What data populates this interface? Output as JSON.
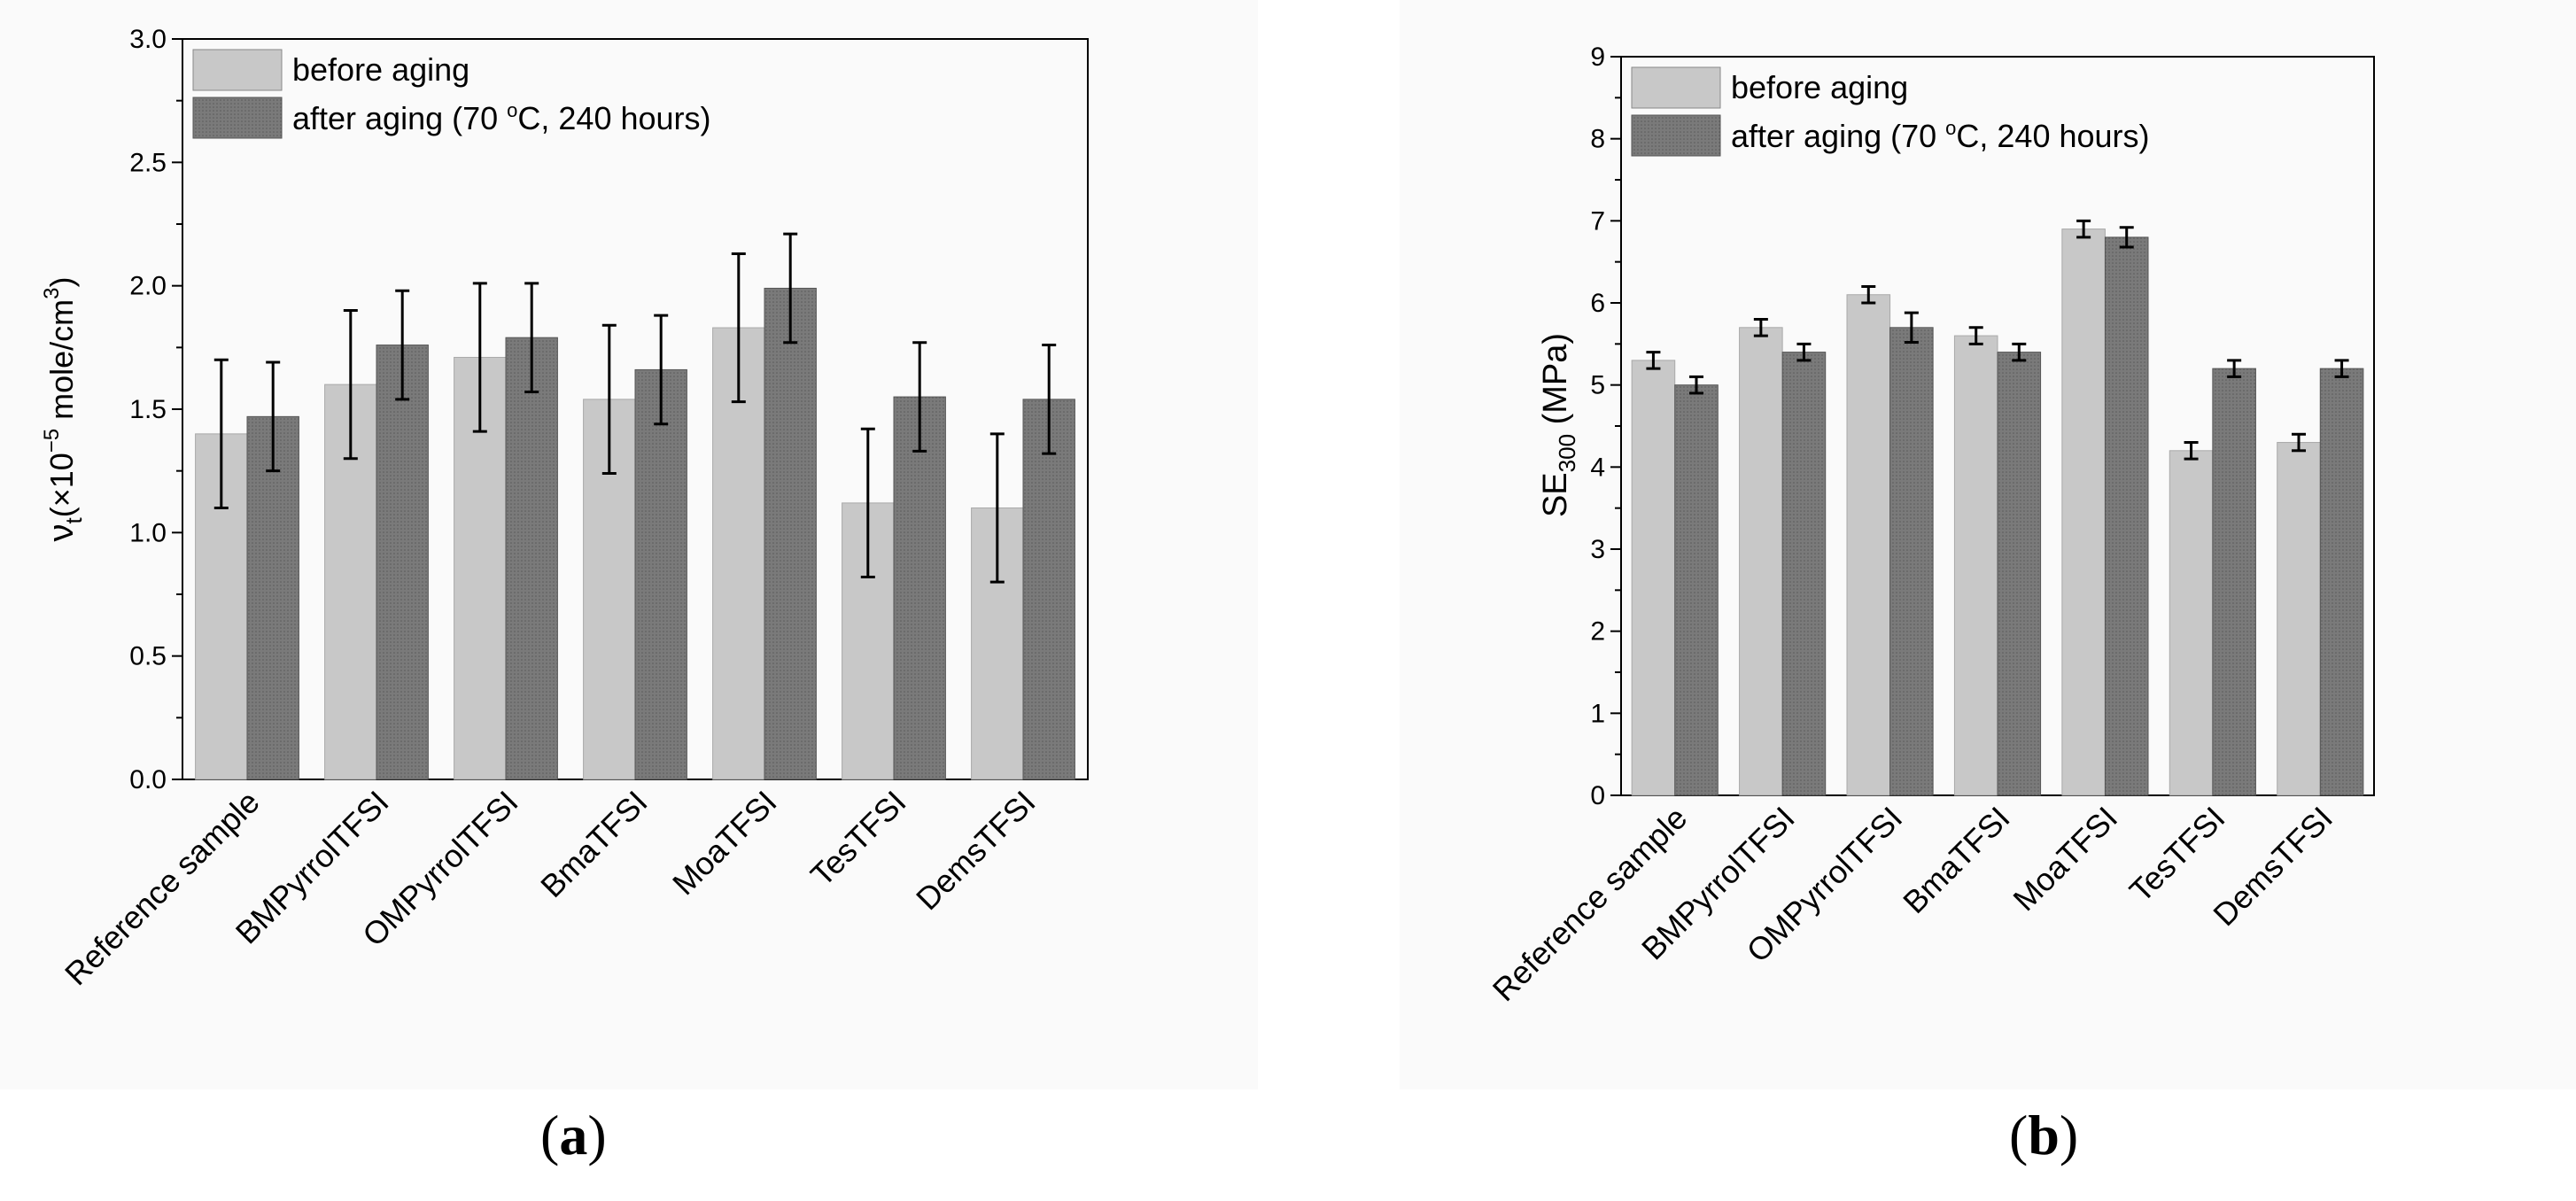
{
  "chart_data": [
    {
      "type": "bar",
      "panel_label": "a",
      "categories": [
        "Reference sample",
        "BMPyrrolTFSI",
        "OMPyrrolTFSI",
        "BmaTFSI",
        "MoaTFSI",
        "TesTFSI",
        "DemsTFSI"
      ],
      "series": [
        {
          "name": "before aging",
          "values": [
            1.4,
            1.6,
            1.71,
            1.54,
            1.83,
            1.12,
            1.1
          ],
          "errors": [
            0.3,
            0.3,
            0.3,
            0.3,
            0.3,
            0.3,
            0.3
          ],
          "color": "#c8c8c8"
        },
        {
          "name": "after aging (70 °C, 240 hours)",
          "values": [
            1.47,
            1.76,
            1.79,
            1.66,
            1.99,
            1.55,
            1.54
          ],
          "errors": [
            0.22,
            0.22,
            0.22,
            0.22,
            0.22,
            0.22,
            0.22
          ],
          "color": "#7a7a7a"
        }
      ],
      "legend_parts": {
        "before": "before aging",
        "after_prefix": "after aging (70 ",
        "after_sup": "o",
        "after_suffix": "C, 240 hours)"
      },
      "ylabel_parts": {
        "nu": "ν",
        "sub_t": "t",
        "open": "(×10",
        "sup_exp": "−5",
        "mid": " mole/cm",
        "sup_3": "3",
        "close": ")"
      },
      "ylim": [
        0,
        3.0
      ],
      "yticks": [
        "0.0",
        "0.5",
        "1.0",
        "1.5",
        "2.0",
        "2.5",
        "3.0"
      ],
      "legend_position": "top-left"
    },
    {
      "type": "bar",
      "panel_label": "b",
      "categories": [
        "Reference sample",
        "BMPyrrolTFSI",
        "OMPyrrolTFSI",
        "BmaTFSI",
        "MoaTFSI",
        "TesTFSI",
        "DemsTFSI"
      ],
      "series": [
        {
          "name": "before aging",
          "values": [
            5.3,
            5.7,
            6.1,
            5.6,
            6.9,
            4.2,
            4.3
          ],
          "errors": [
            0.1,
            0.1,
            0.1,
            0.1,
            0.1,
            0.1,
            0.1
          ],
          "color": "#c8c8c8"
        },
        {
          "name": "after aging (70 °C, 240 hours)",
          "values": [
            5.0,
            5.4,
            5.7,
            5.4,
            6.8,
            5.2,
            5.2
          ],
          "errors": [
            0.1,
            0.1,
            0.18,
            0.1,
            0.12,
            0.1,
            0.1
          ],
          "color": "#7a7a7a"
        }
      ],
      "legend_parts": {
        "before": "before aging",
        "after_prefix": "after aging (70 ",
        "after_sup": "o",
        "after_suffix": "C, 240 hours)"
      },
      "ylabel_parts": {
        "main": "SE",
        "sub": "300",
        "unit": " (MPa)"
      },
      "ylim": [
        0,
        9
      ],
      "yticks": [
        "0",
        "1",
        "2",
        "3",
        "4",
        "5",
        "6",
        "7",
        "8",
        "9"
      ],
      "legend_position": "top-left"
    }
  ],
  "captions": {
    "a": {
      "open": "(",
      "letter": "a",
      "close": ")"
    },
    "b": {
      "open": "(",
      "letter": "b",
      "close": ")"
    }
  }
}
